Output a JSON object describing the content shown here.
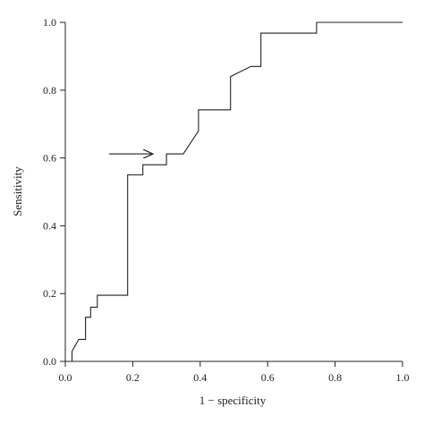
{
  "chart_data": {
    "type": "line",
    "title": "",
    "xlabel": "1 − specificity",
    "ylabel": "Sensitivity",
    "xlim": [
      0,
      1
    ],
    "ylim": [
      0,
      1
    ],
    "xticks": [
      "0.0",
      "0.2",
      "0.4",
      "0.6",
      "0.8",
      "1.0"
    ],
    "yticks": [
      "0.0",
      "0.2",
      "0.4",
      "0.6",
      "0.8",
      "1.0"
    ],
    "grid": false,
    "series": [
      {
        "x": [
          0.02,
          0.02,
          0.04,
          0.06,
          0.06,
          0.075,
          0.075,
          0.095,
          0.095,
          0.115,
          0.115,
          0.185,
          0.185,
          0.23,
          0.23,
          0.3,
          0.3,
          0.35,
          0.395,
          0.395,
          0.49,
          0.49,
          0.55,
          0.58,
          0.58,
          0.745,
          0.745,
          1.0
        ],
        "y": [
          0.0,
          0.03,
          0.065,
          0.065,
          0.13,
          0.13,
          0.16,
          0.16,
          0.195,
          0.195,
          0.195,
          0.195,
          0.55,
          0.55,
          0.58,
          0.58,
          0.612,
          0.612,
          0.68,
          0.742,
          0.742,
          0.84,
          0.87,
          0.87,
          0.968,
          0.968,
          1.0,
          1.0
        ]
      }
    ],
    "annotations": [
      {
        "type": "arrow",
        "x_start": 0.13,
        "x_end": 0.26,
        "y": 0.612
      }
    ]
  }
}
